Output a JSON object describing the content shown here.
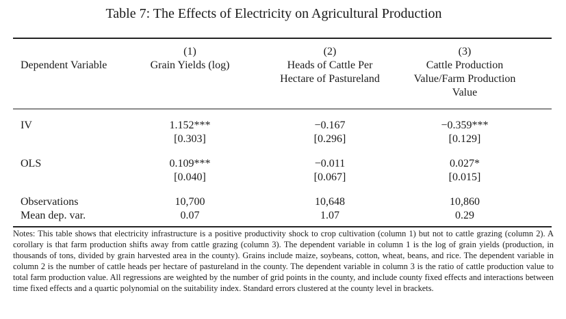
{
  "table": {
    "title": "Table 7: The Effects of Electricity on Agricultural Production",
    "header": {
      "row_label": "Dependent Variable",
      "columns": [
        {
          "number": "(1)",
          "name_line1": "Grain Yields (log)",
          "name_line2": "",
          "name_line3": ""
        },
        {
          "number": "(2)",
          "name_line1": "Heads of Cattle Per",
          "name_line2": "Hectare of Pastureland",
          "name_line3": ""
        },
        {
          "number": "(3)",
          "name_line1": "Cattle Production",
          "name_line2": "Value/Farm Production",
          "name_line3": "Value"
        }
      ]
    },
    "rows": [
      {
        "label": "IV",
        "coefs": [
          "1.152***",
          "−0.167",
          "−0.359***"
        ],
        "ses": [
          "[0.303]",
          "[0.296]",
          "[0.129]"
        ]
      },
      {
        "label": "OLS",
        "coefs": [
          "0.109***",
          "−0.011",
          "0.027*"
        ],
        "ses": [
          "[0.040]",
          "[0.067]",
          "[0.015]"
        ]
      }
    ],
    "stats": [
      {
        "label": "Observations",
        "values": [
          "10,700",
          "10,648",
          "10,860"
        ]
      },
      {
        "label": "Mean dep. var.",
        "values": [
          "0.07",
          "1.07",
          "0.29"
        ]
      }
    ],
    "notes": "Notes: This table shows that electricity infrastructure is a positive productivity shock to crop cultivation (column 1) but not to cattle grazing (column 2). A corollary is that farm production shifts away from cattle grazing (column 3). The dependent variable in column 1 is the log of grain yields (production, in thousands of tons, divided by grain harvested area in the county). Grains include maize, soybeans, cotton, wheat, beans, and rice. The dependent variable in column 2 is the number of cattle heads per hectare of pastureland in the county. The dependent variable in column 3 is the ratio of cattle production value to total farm production value. All regressions are weighted by the number of grid points in the county, and include county fixed effects and interactions between time fixed effects and a quartic polynomial on the suitability index. Standard errors clustered at the county level in brackets."
  }
}
